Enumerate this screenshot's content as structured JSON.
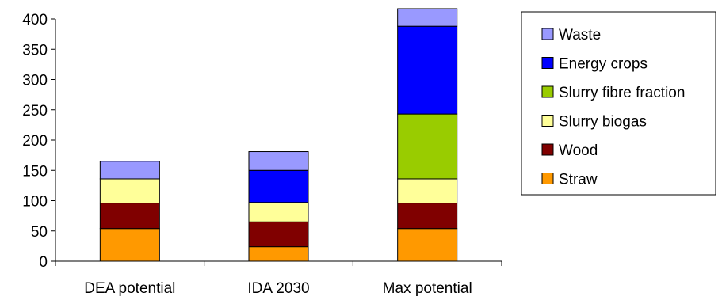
{
  "chart_data": {
    "type": "bar",
    "stacked": true,
    "title": "",
    "xlabel": "",
    "ylabel": "",
    "ylim": [
      0,
      400
    ],
    "yticks": [
      0,
      50,
      100,
      150,
      200,
      250,
      300,
      350,
      400
    ],
    "grid": false,
    "legend_position": "right",
    "categories": [
      "DEA potential",
      "IDA 2030",
      "Max potential"
    ],
    "series": [
      {
        "name": "Straw",
        "color": "#ff9900",
        "values": [
          54,
          24,
          54
        ]
      },
      {
        "name": "Wood",
        "color": "#800000",
        "values": [
          42,
          41,
          42
        ]
      },
      {
        "name": "Slurry biogas",
        "color": "#ffff99",
        "values": [
          40,
          32,
          40
        ]
      },
      {
        "name": "Slurry fibre fraction",
        "color": "#99cc00",
        "values": [
          0,
          0,
          107
        ]
      },
      {
        "name": "Energy crops",
        "color": "#0000ff",
        "values": [
          0,
          53,
          145
        ]
      },
      {
        "name": "Waste",
        "color": "#9999ff",
        "values": [
          29,
          31,
          29
        ]
      }
    ],
    "legend_order": [
      "Waste",
      "Energy crops",
      "Slurry fibre fraction",
      "Slurry biogas",
      "Wood",
      "Straw"
    ]
  }
}
